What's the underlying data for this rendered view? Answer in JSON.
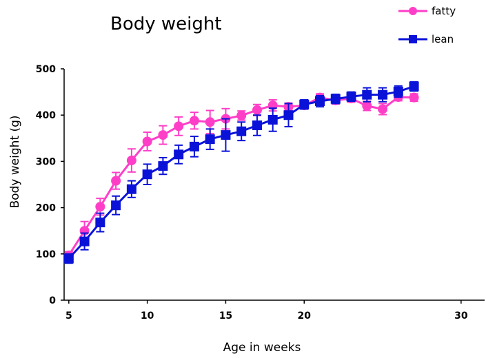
{
  "chart_data": {
    "type": "line",
    "title": "Body weight",
    "xlabel": "Age in weeks",
    "ylabel": "Body weight (g)",
    "xlim": [
      4.7,
      31.5
    ],
    "ylim": [
      0,
      500
    ],
    "xticks": [
      5,
      10,
      15,
      20,
      30
    ],
    "yticks": [
      0,
      100,
      200,
      300,
      400,
      500
    ],
    "grid": false,
    "legend_position": "top-right",
    "series": [
      {
        "name": "fatty",
        "color": "#ff3ec8",
        "marker": "circle",
        "x": [
          5,
          6,
          7,
          8,
          9,
          10,
          11,
          12,
          13,
          14,
          15,
          16,
          17,
          18,
          19,
          20,
          21,
          22,
          23,
          24,
          25,
          26,
          27,
          28,
          29
        ],
        "y": [
          97,
          150,
          202,
          258,
          302,
          343,
          357,
          376,
          388,
          385,
          392,
          399,
          411,
          421,
          418,
          421,
          438,
          432,
          436,
          420,
          413,
          439,
          438,
          null,
          null
        ],
        "err": [
          8,
          20,
          18,
          18,
          25,
          20,
          20,
          20,
          18,
          25,
          22,
          10,
          12,
          12,
          8,
          8,
          8,
          8,
          8,
          10,
          12,
          8,
          8,
          null,
          null
        ]
      },
      {
        "name": "lean",
        "color": "#0a12d8",
        "marker": "square",
        "x": [
          5,
          6,
          7,
          8,
          9,
          10,
          11,
          12,
          13,
          14,
          15,
          16,
          17,
          18,
          19,
          20,
          21,
          22,
          23,
          24,
          25,
          26,
          27,
          28,
          29
        ],
        "y": [
          90,
          127,
          168,
          205,
          240,
          272,
          290,
          315,
          332,
          348,
          357,
          365,
          378,
          390,
          400,
          423,
          430,
          435,
          440,
          444,
          444,
          451,
          462,
          null,
          null
        ],
        "err": [
          10,
          18,
          20,
          20,
          18,
          22,
          18,
          20,
          22,
          22,
          35,
          20,
          22,
          25,
          25,
          10,
          12,
          10,
          10,
          15,
          15,
          12,
          10,
          null,
          null
        ]
      }
    ]
  }
}
